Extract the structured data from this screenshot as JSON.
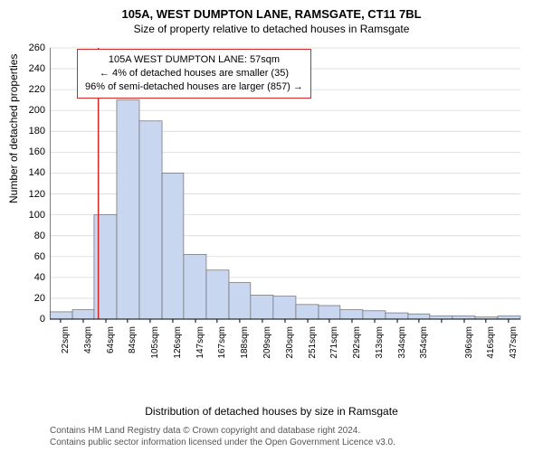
{
  "title": "105A, WEST DUMPTON LANE, RAMSGATE, CT11 7BL",
  "subtitle": "Size of property relative to detached houses in Ramsgate",
  "y_label": "Number of detached properties",
  "x_label": "Distribution of detached houses by size in Ramsgate",
  "footer_line1": "Contains HM Land Registry data © Crown copyright and database right 2024.",
  "footer_line2": "Contains public sector information licensed under the Open Government Licence v3.0.",
  "annotation": {
    "line1": "105A WEST DUMPTON LANE: 57sqm",
    "line2": "← 4% of detached houses are smaller (35)",
    "line3": "96% of semi-detached houses are larger (857) →"
  },
  "chart": {
    "type": "histogram",
    "background_color": "#ffffff",
    "grid_color": "#d9d9d9",
    "axis_color": "#000000",
    "bar_fill": "#c9d6f0",
    "bar_stroke": "#6b6b6b",
    "marker_line_color": "#d62728",
    "marker_x": 57,
    "ylim": [
      0,
      260
    ],
    "ytick_step": 20,
    "x_min": 12,
    "x_max": 448,
    "x_tick_labels": [
      "22sqm",
      "43sqm",
      "64sqm",
      "84sqm",
      "105sqm",
      "126sqm",
      "147sqm",
      "167sqm",
      "188sqm",
      "209sqm",
      "230sqm",
      "251sqm",
      "271sqm",
      "292sqm",
      "313sqm",
      "334sqm",
      "354sqm",
      "",
      "396sqm",
      "416sqm",
      "437sqm"
    ],
    "x_tick_values": [
      22,
      43,
      64,
      84,
      105,
      126,
      147,
      167,
      188,
      209,
      230,
      251,
      271,
      292,
      313,
      334,
      354,
      375,
      396,
      416,
      437
    ],
    "bars_x_start": [
      12,
      33,
      53,
      74,
      95,
      116,
      136,
      157,
      178,
      198,
      219,
      240,
      261,
      281,
      302,
      323,
      344,
      364,
      385,
      406,
      427
    ],
    "bars_x_end": [
      33,
      53,
      74,
      95,
      116,
      136,
      157,
      178,
      198,
      219,
      240,
      261,
      281,
      302,
      323,
      344,
      364,
      385,
      406,
      427,
      448
    ],
    "bars_height": [
      7,
      9,
      100,
      210,
      190,
      140,
      62,
      47,
      35,
      23,
      22,
      14,
      13,
      9,
      8,
      6,
      5,
      3,
      3,
      2,
      3
    ],
    "title_fontsize": 13,
    "label_fontsize": 12,
    "tick_fontsize": 11
  }
}
